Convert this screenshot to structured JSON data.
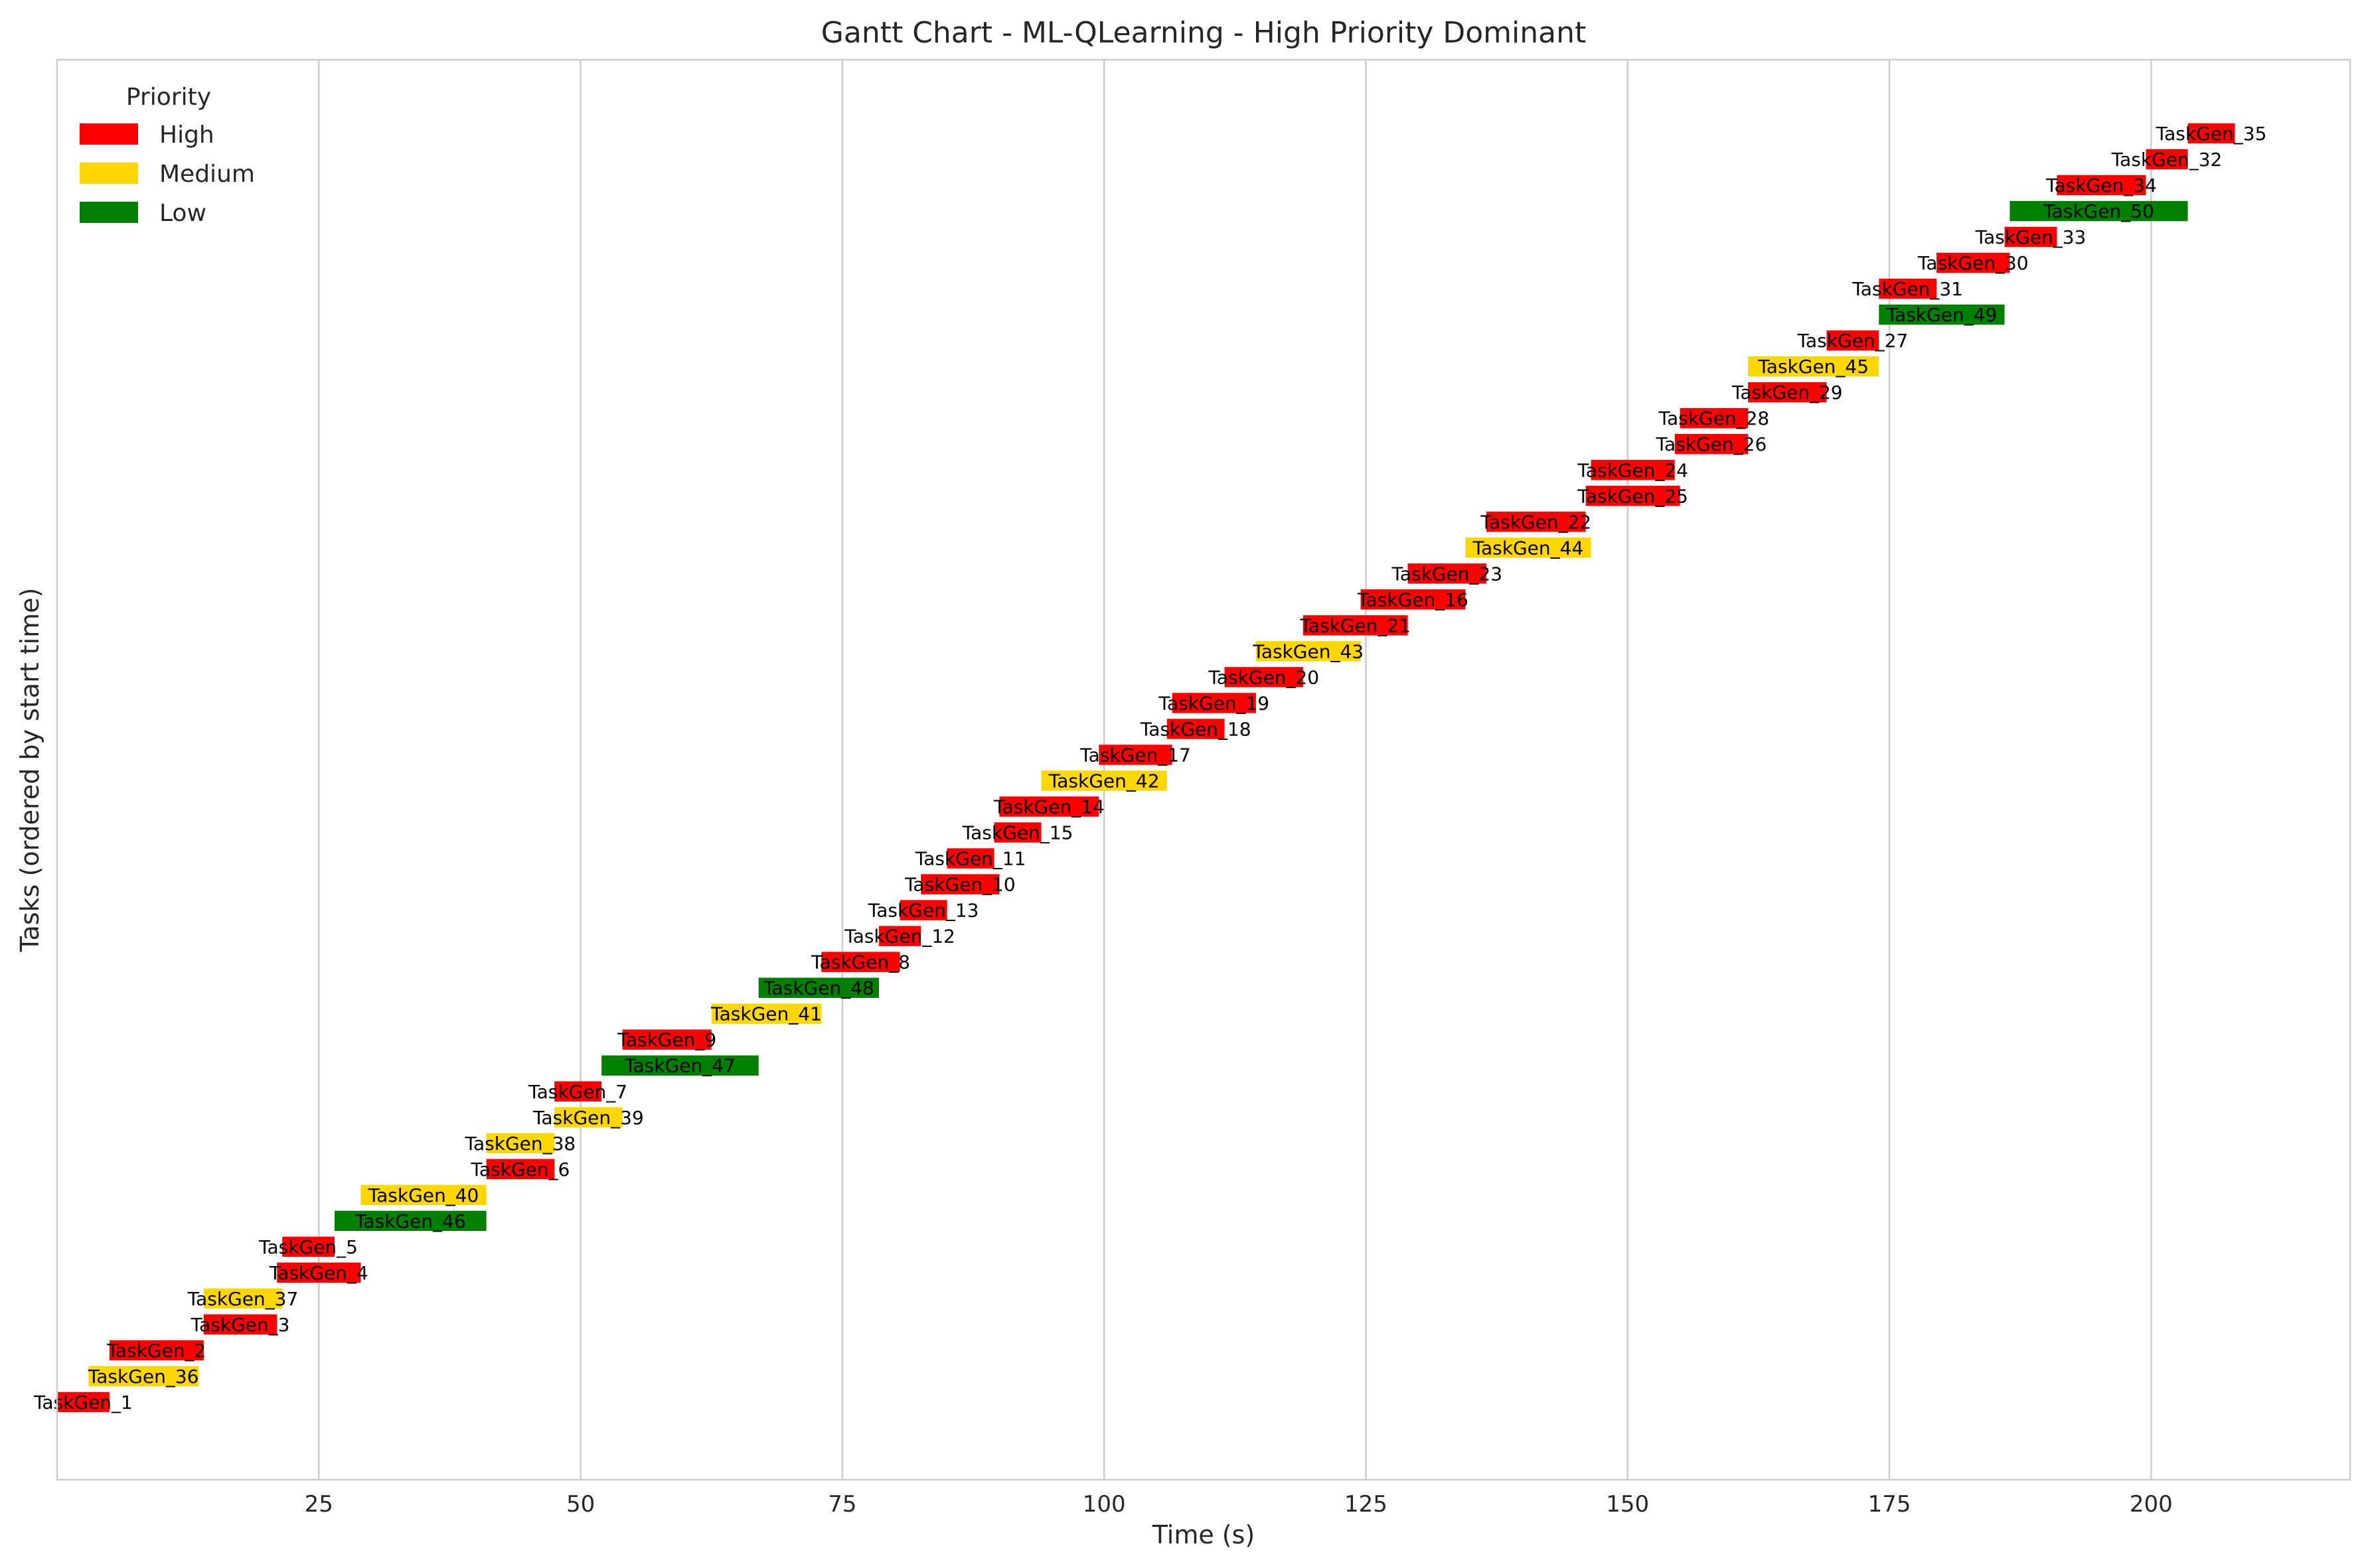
{
  "chart_data": {
    "type": "gantt",
    "title": "Gantt Chart - ML-QLearning - High Priority Dominant",
    "xlabel": "Time (s)",
    "ylabel": "Tasks (ordered by start time)",
    "xlim": [
      0,
      219
    ],
    "xticks": [
      25,
      50,
      75,
      100,
      125,
      150,
      175,
      200
    ],
    "grid": "vertical",
    "legend": {
      "title": "Priority",
      "placement": "top-left",
      "entries": [
        {
          "label": "High",
          "color": "#ff0000"
        },
        {
          "label": "Medium",
          "color": "#ffd700"
        },
        {
          "label": "Low",
          "color": "#008000"
        }
      ]
    },
    "colors": {
      "High": "#ff0000",
      "Medium": "#ffd700",
      "Low": "#008000"
    },
    "tasks": [
      {
        "name": "TaskGen_1",
        "priority": "High",
        "start": 0.0,
        "end": 5.0
      },
      {
        "name": "TaskGen_36",
        "priority": "Medium",
        "start": 3.0,
        "end": 13.5
      },
      {
        "name": "TaskGen_2",
        "priority": "High",
        "start": 5.0,
        "end": 14.0
      },
      {
        "name": "TaskGen_3",
        "priority": "High",
        "start": 14.0,
        "end": 21.0
      },
      {
        "name": "TaskGen_37",
        "priority": "Medium",
        "start": 14.0,
        "end": 21.5
      },
      {
        "name": "TaskGen_4",
        "priority": "High",
        "start": 21.0,
        "end": 29.0
      },
      {
        "name": "TaskGen_5",
        "priority": "High",
        "start": 21.5,
        "end": 26.5
      },
      {
        "name": "TaskGen_46",
        "priority": "Low",
        "start": 26.5,
        "end": 41.0
      },
      {
        "name": "TaskGen_40",
        "priority": "Medium",
        "start": 29.0,
        "end": 41.0
      },
      {
        "name": "TaskGen_6",
        "priority": "High",
        "start": 41.0,
        "end": 47.5
      },
      {
        "name": "TaskGen_38",
        "priority": "Medium",
        "start": 41.0,
        "end": 47.5
      },
      {
        "name": "TaskGen_39",
        "priority": "Medium",
        "start": 47.5,
        "end": 54.0
      },
      {
        "name": "TaskGen_7",
        "priority": "High",
        "start": 47.5,
        "end": 52.0
      },
      {
        "name": "TaskGen_47",
        "priority": "Low",
        "start": 52.0,
        "end": 67.0
      },
      {
        "name": "TaskGen_9",
        "priority": "High",
        "start": 54.0,
        "end": 62.5
      },
      {
        "name": "TaskGen_41",
        "priority": "Medium",
        "start": 62.5,
        "end": 73.0
      },
      {
        "name": "TaskGen_48",
        "priority": "Low",
        "start": 67.0,
        "end": 78.5
      },
      {
        "name": "TaskGen_8",
        "priority": "High",
        "start": 73.0,
        "end": 80.5
      },
      {
        "name": "TaskGen_12",
        "priority": "High",
        "start": 78.5,
        "end": 82.5
      },
      {
        "name": "TaskGen_13",
        "priority": "High",
        "start": 80.5,
        "end": 85.0
      },
      {
        "name": "TaskGen_10",
        "priority": "High",
        "start": 82.5,
        "end": 90.0
      },
      {
        "name": "TaskGen_11",
        "priority": "High",
        "start": 85.0,
        "end": 89.5
      },
      {
        "name": "TaskGen_15",
        "priority": "High",
        "start": 89.5,
        "end": 94.0
      },
      {
        "name": "TaskGen_14",
        "priority": "High",
        "start": 90.0,
        "end": 99.5
      },
      {
        "name": "TaskGen_42",
        "priority": "Medium",
        "start": 94.0,
        "end": 106.0
      },
      {
        "name": "TaskGen_17",
        "priority": "High",
        "start": 99.5,
        "end": 106.5
      },
      {
        "name": "TaskGen_18",
        "priority": "High",
        "start": 106.0,
        "end": 111.5
      },
      {
        "name": "TaskGen_19",
        "priority": "High",
        "start": 106.5,
        "end": 114.5
      },
      {
        "name": "TaskGen_20",
        "priority": "High",
        "start": 111.5,
        "end": 119.0
      },
      {
        "name": "TaskGen_43",
        "priority": "Medium",
        "start": 114.5,
        "end": 124.5
      },
      {
        "name": "TaskGen_21",
        "priority": "High",
        "start": 119.0,
        "end": 129.0
      },
      {
        "name": "TaskGen_16",
        "priority": "High",
        "start": 124.5,
        "end": 134.5
      },
      {
        "name": "TaskGen_23",
        "priority": "High",
        "start": 129.0,
        "end": 136.5
      },
      {
        "name": "TaskGen_44",
        "priority": "Medium",
        "start": 134.5,
        "end": 146.5
      },
      {
        "name": "TaskGen_22",
        "priority": "High",
        "start": 136.5,
        "end": 146.0
      },
      {
        "name": "TaskGen_25",
        "priority": "High",
        "start": 146.0,
        "end": 155.0
      },
      {
        "name": "TaskGen_24",
        "priority": "High",
        "start": 146.5,
        "end": 154.5
      },
      {
        "name": "TaskGen_26",
        "priority": "High",
        "start": 154.5,
        "end": 161.5
      },
      {
        "name": "TaskGen_28",
        "priority": "High",
        "start": 155.0,
        "end": 161.5
      },
      {
        "name": "TaskGen_29",
        "priority": "High",
        "start": 161.5,
        "end": 169.0
      },
      {
        "name": "TaskGen_45",
        "priority": "Medium",
        "start": 161.5,
        "end": 174.0
      },
      {
        "name": "TaskGen_27",
        "priority": "High",
        "start": 169.0,
        "end": 174.0
      },
      {
        "name": "TaskGen_49",
        "priority": "Low",
        "start": 174.0,
        "end": 186.0
      },
      {
        "name": "TaskGen_31",
        "priority": "High",
        "start": 174.0,
        "end": 179.5
      },
      {
        "name": "TaskGen_30",
        "priority": "High",
        "start": 179.5,
        "end": 186.5
      },
      {
        "name": "TaskGen_33",
        "priority": "High",
        "start": 186.0,
        "end": 191.0
      },
      {
        "name": "TaskGen_50",
        "priority": "Low",
        "start": 186.5,
        "end": 203.5
      },
      {
        "name": "TaskGen_34",
        "priority": "High",
        "start": 191.0,
        "end": 199.5
      },
      {
        "name": "TaskGen_32",
        "priority": "High",
        "start": 199.5,
        "end": 203.5
      },
      {
        "name": "TaskGen_35",
        "priority": "High",
        "start": 203.5,
        "end": 208.0
      }
    ]
  }
}
